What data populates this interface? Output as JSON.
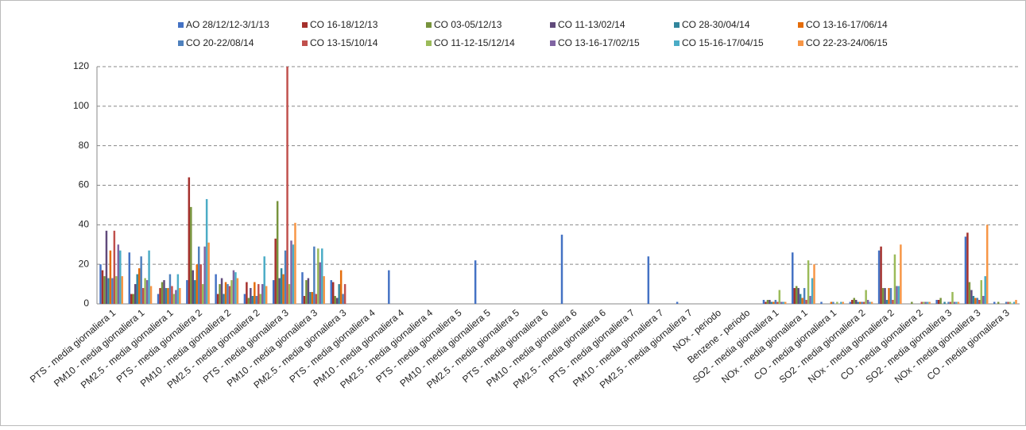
{
  "chart_data": {
    "type": "bar",
    "categories": [
      "PTS - media giornaliera 1",
      "PM10 - media giornaliera 1",
      "PM2.5 - media giornaliera 1",
      "PTS - media giornaliera 2",
      "PM10 - media giornaliera 2",
      "PM2.5 - media giornaliera 2",
      "PTS - media giornaliera 3",
      "PM10 - media giornaliera 3",
      "PM2.5 - media giornaliera 3",
      "PTS - media giornaliera 4",
      "PM10 - media giornaliera 4",
      "PM2.5 - media giornaliera 4",
      "PTS - media giornaliera 5",
      "PM10 - media giornaliera 5",
      "PM2.5 - media giornaliera 5",
      "PTS - media giornaliera 6",
      "PM10 - media giornaliera 6",
      "PM2.5 - media giornaliera 6",
      "PTS - media giornaliera 7",
      "PM10 - media giornaliera 7",
      "PM2.5 - media giornaliera 7",
      "NOx - periodo",
      "Benzene - periodo",
      "SO2 - media giornaliera 1",
      "NOx - media giornaliera 1",
      "CO - media giornaliera 1",
      "SO2 - media giornaliera 2",
      "NOx - media giornaliera 2",
      "CO - media giornaliera 2",
      "SO2 - media giornaliera 3",
      "NOx - media giornaliera 3",
      "CO - media giornaliera 3"
    ],
    "series": [
      {
        "name": "AO 28/12/12-3/1/13",
        "color": "#4472c4",
        "values": [
          20,
          26,
          5,
          12,
          15,
          5,
          12,
          16,
          12,
          0,
          17,
          0,
          0,
          22,
          0,
          0,
          35,
          0,
          0,
          24,
          1,
          0,
          0,
          2,
          26,
          1,
          1,
          27,
          0,
          2,
          34,
          1
        ]
      },
      {
        "name": "CO 16-18/12/13",
        "color": "#a5302c",
        "values": [
          17,
          5,
          8,
          64,
          5,
          11,
          33,
          4,
          11,
          0,
          0,
          0,
          0,
          0,
          0,
          0,
          0,
          0,
          0,
          0,
          0,
          0,
          0,
          1,
          8,
          0,
          2,
          29,
          0,
          2,
          36,
          0
        ]
      },
      {
        "name": "CO 03-05/12/13",
        "color": "#77933c",
        "values": [
          14,
          5,
          11,
          49,
          10,
          3,
          52,
          12,
          4,
          0,
          0,
          0,
          0,
          0,
          0,
          0,
          0,
          0,
          0,
          0,
          0,
          0,
          0,
          2,
          9,
          0,
          3,
          8,
          1,
          3,
          11,
          1
        ]
      },
      {
        "name": "CO 11-13/02/14",
        "color": "#604a7b",
        "values": [
          37,
          10,
          12,
          17,
          13,
          8,
          13,
          13,
          3,
          0,
          0,
          0,
          0,
          0,
          0,
          0,
          0,
          0,
          0,
          0,
          0,
          0,
          0,
          2,
          8,
          0,
          2,
          8,
          0,
          0,
          7,
          0
        ]
      },
      {
        "name": "CO 28-30/04/14",
        "color": "#31859c",
        "values": [
          13,
          15,
          8,
          12,
          5,
          4,
          18,
          6,
          10,
          0,
          0,
          0,
          0,
          0,
          0,
          0,
          0,
          0,
          0,
          0,
          0,
          0,
          0,
          1,
          5,
          0,
          1,
          2,
          0,
          1,
          4,
          0
        ]
      },
      {
        "name": "CO 13-16-17/06/14",
        "color": "#e46c0a",
        "values": [
          27,
          18,
          8,
          20,
          11,
          11,
          15,
          6,
          17,
          0,
          0,
          0,
          0,
          0,
          0,
          0,
          0,
          0,
          0,
          0,
          0,
          0,
          0,
          1,
          3,
          1,
          1,
          8,
          0,
          0,
          3,
          0
        ]
      },
      {
        "name": "CO 20-22/08/14",
        "color": "#4f81bd",
        "values": [
          13,
          24,
          15,
          29,
          10,
          4,
          27,
          29,
          5,
          0,
          0,
          0,
          0,
          0,
          0,
          0,
          0,
          0,
          0,
          0,
          0,
          0,
          0,
          2,
          8,
          1,
          1,
          8,
          0,
          1,
          3,
          1
        ]
      },
      {
        "name": "CO 13-15/10/14",
        "color": "#c0504d",
        "values": [
          37,
          8,
          9,
          20,
          9,
          10,
          120,
          5,
          10,
          0,
          0,
          0,
          0,
          0,
          0,
          0,
          0,
          0,
          0,
          0,
          0,
          0,
          0,
          1,
          2,
          0,
          1,
          2,
          1,
          1,
          2,
          1
        ]
      },
      {
        "name": "CO 11-12-15/12/14",
        "color": "#9bbb59",
        "values": [
          14,
          13,
          5,
          10,
          12,
          5,
          10,
          28,
          0,
          0,
          0,
          0,
          0,
          0,
          0,
          0,
          0,
          0,
          0,
          0,
          0,
          0,
          0,
          7,
          22,
          1,
          7,
          25,
          1,
          6,
          12,
          1
        ]
      },
      {
        "name": "CO 13-16-17/02/15",
        "color": "#8064a2",
        "values": [
          30,
          12,
          7,
          29,
          17,
          10,
          32,
          21,
          0,
          0,
          0,
          0,
          0,
          0,
          0,
          0,
          0,
          0,
          0,
          0,
          0,
          0,
          0,
          1,
          4,
          0,
          2,
          9,
          1,
          1,
          4,
          0
        ]
      },
      {
        "name": "CO 15-16-17/04/15",
        "color": "#4bacc6",
        "values": [
          27,
          27,
          15,
          53,
          16,
          24,
          30,
          28,
          0,
          0,
          0,
          0,
          0,
          0,
          0,
          0,
          0,
          0,
          0,
          0,
          0,
          0,
          0,
          1,
          13,
          1,
          1,
          9,
          1,
          1,
          14,
          1
        ]
      },
      {
        "name": "CO 22-23-24/06/15",
        "color": "#f79646",
        "values": [
          14,
          9,
          8,
          31,
          13,
          9,
          41,
          14,
          0,
          0,
          0,
          0,
          0,
          0,
          0,
          0,
          0,
          0,
          0,
          0,
          0,
          0,
          0,
          1,
          20,
          1,
          1,
          30,
          1,
          1,
          40,
          2
        ]
      }
    ],
    "ylim": [
      0,
      120
    ],
    "yticks": [
      0,
      20,
      40,
      60,
      80,
      100,
      120
    ],
    "grid": true,
    "legend": "top"
  }
}
